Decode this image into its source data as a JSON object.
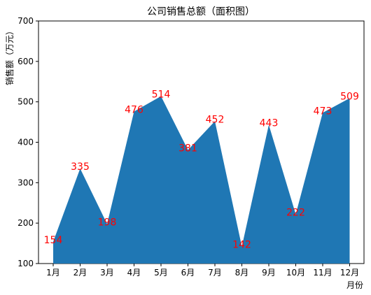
{
  "chart_data": {
    "type": "area",
    "title": "公司销售总额（面积图）",
    "xlabel": "月份",
    "ylabel": "销售额（万元）",
    "categories": [
      "1月",
      "2月",
      "3月",
      "4月",
      "5月",
      "6月",
      "7月",
      "8月",
      "9月",
      "10月",
      "11月",
      "12月"
    ],
    "series": [
      {
        "values": [
          154,
          335,
          198,
          476,
          514,
          381,
          452,
          142,
          443,
          222,
          473,
          509
        ]
      }
    ],
    "data_labels": [
      "154",
      "335",
      "198",
      "476",
      "514",
      "381",
      "452",
      "142",
      "443",
      "222",
      "473",
      "509"
    ],
    "ylim": [
      100,
      700
    ],
    "yticks": [
      "100",
      "200",
      "300",
      "400",
      "500",
      "600",
      "700"
    ],
    "grid": false,
    "legend": "none",
    "colors": {
      "area": "#1f77b4",
      "label": "#ff0000",
      "axis": "#000000"
    }
  }
}
